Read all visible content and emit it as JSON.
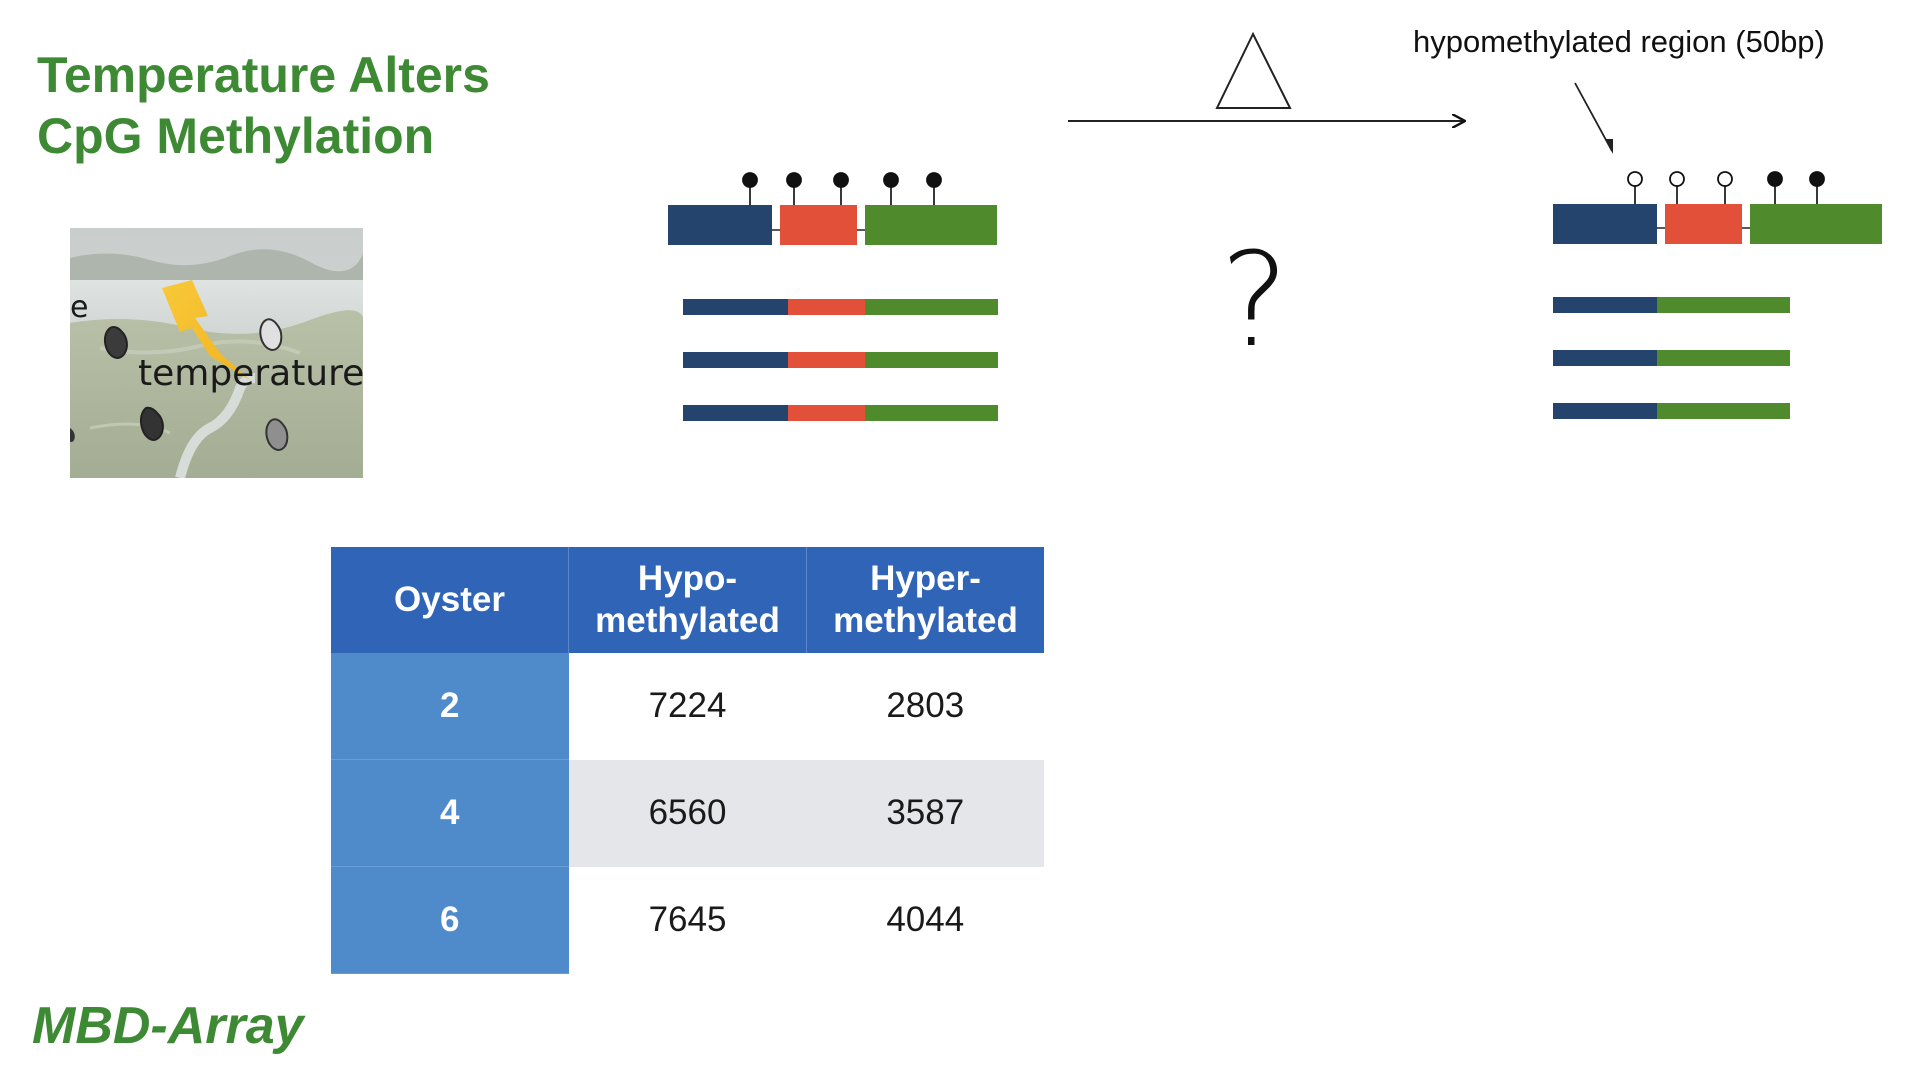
{
  "title": {
    "line1": "Temperature Alters",
    "line2": "CpG Methylation"
  },
  "footer": "MBD-Array",
  "photo": {
    "caption": "temperature",
    "edge_letter": "e",
    "icon": "lightning-bolt-icon"
  },
  "diagram": {
    "treatment_symbol": "delta-triangle-icon",
    "arrow": "right-arrow",
    "question": "?",
    "region_label": "hypomethylated region (50bp)",
    "colors": {
      "exon1": "#24446e",
      "exon2": "#e2503a",
      "exon3": "#4f8a2c"
    },
    "before": {
      "cpg_sites": [
        "methylated",
        "methylated",
        "methylated",
        "methylated",
        "methylated"
      ],
      "transcripts": [
        [
          "exon1",
          "exon2",
          "exon3"
        ],
        [
          "exon1",
          "exon2",
          "exon3"
        ],
        [
          "exon1",
          "exon2",
          "exon3"
        ]
      ]
    },
    "after": {
      "cpg_sites": [
        "unmethylated",
        "unmethylated",
        "unmethylated",
        "methylated",
        "methylated"
      ],
      "transcripts": [
        [
          "exon1",
          "exon3"
        ],
        [
          "exon1",
          "exon3"
        ],
        [
          "exon1",
          "exon3"
        ]
      ]
    }
  },
  "table": {
    "headers": [
      {
        "line1": "Oyster",
        "line2": ""
      },
      {
        "line1": "Hypo-",
        "line2": "methylated"
      },
      {
        "line1": "Hyper-",
        "line2": "methylated"
      }
    ],
    "rows": [
      {
        "oyster": "2",
        "hypo": "7224",
        "hyper": "2803"
      },
      {
        "oyster": "4",
        "hypo": "6560",
        "hyper": "3587"
      },
      {
        "oyster": "6",
        "hypo": "7645",
        "hyper": "4044"
      }
    ],
    "colors": {
      "header": "#2f64b7",
      "row_header": "#4f8acb",
      "alt_row": "#e5e6ea"
    }
  }
}
